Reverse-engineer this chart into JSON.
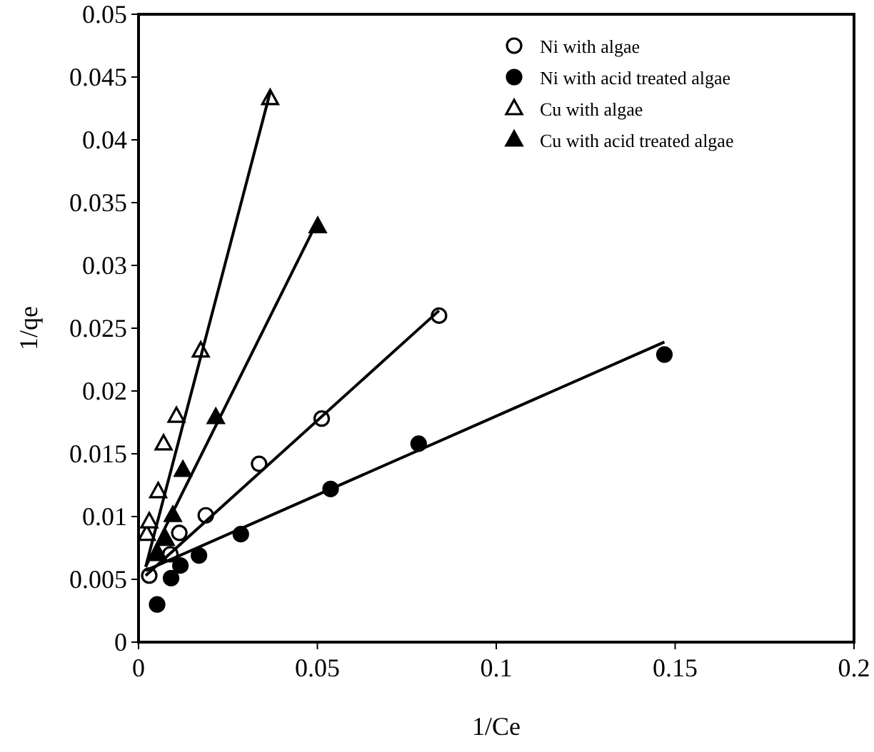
{
  "chart_data": {
    "type": "scatter",
    "xlabel": "1/Ce",
    "ylabel": "1/qe",
    "xlim": [
      0,
      0.2
    ],
    "ylim": [
      0,
      0.05
    ],
    "xticks": [
      0,
      0.05,
      0.1,
      0.15,
      0.2
    ],
    "yticks": [
      0,
      0.005,
      0.01,
      0.015,
      0.02,
      0.025,
      0.03,
      0.035,
      0.04,
      0.045,
      0.05
    ],
    "grid": false,
    "legend": "top right",
    "series": [
      {
        "name": "Ni with algae",
        "color": "#ffffff",
        "marker": "circle",
        "x": [
          0.003,
          0.0089,
          0.0114,
          0.0188,
          0.0337,
          0.0512,
          0.084
        ],
        "values": [
          0.0053,
          0.007,
          0.0087,
          0.0101,
          0.0142,
          0.0178,
          0.026
        ]
      },
      {
        "name": "Ni with acid treated algae",
        "color": "#000000",
        "marker": "circle",
        "x": [
          0.0052,
          0.0091,
          0.0117,
          0.0169,
          0.0286,
          0.0537,
          0.0783,
          0.147
        ],
        "values": [
          0.003,
          0.0051,
          0.0061,
          0.0069,
          0.0086,
          0.0122,
          0.0158,
          0.0229
        ]
      },
      {
        "name": "Cu with algae",
        "color": "#ffffff",
        "marker": "triangle",
        "x": [
          0.0023,
          0.003,
          0.0055,
          0.007,
          0.0106,
          0.0174,
          0.0368
        ],
        "values": [
          0.0086,
          0.0096,
          0.012,
          0.0158,
          0.018,
          0.0232,
          0.0433
        ]
      },
      {
        "name": "Cu with acid treated algae",
        "color": "#000000",
        "marker": "triangle",
        "x": [
          0.0055,
          0.0076,
          0.0096,
          0.0124,
          0.0216,
          0.0501
        ],
        "values": [
          0.007,
          0.0082,
          0.0101,
          0.0137,
          0.0179,
          0.0331
        ]
      },
      {
        "type": "line",
        "color": "#000000",
        "marker": "none",
        "x": [
          0.002,
          0.084
        ],
        "values": [
          0.0053,
          0.0264
        ]
      },
      {
        "type": "line",
        "color": "#000000",
        "marker": "none",
        "x": [
          0.002,
          0.147
        ],
        "values": [
          0.0057,
          0.0239
        ]
      },
      {
        "type": "line",
        "color": "#000000",
        "marker": "none",
        "x": [
          0.002,
          0.0368
        ],
        "values": [
          0.006,
          0.0438
        ]
      },
      {
        "type": "line",
        "color": "#000000",
        "marker": "none",
        "x": [
          0.002,
          0.05
        ],
        "values": [
          0.006,
          0.0335
        ]
      }
    ]
  }
}
